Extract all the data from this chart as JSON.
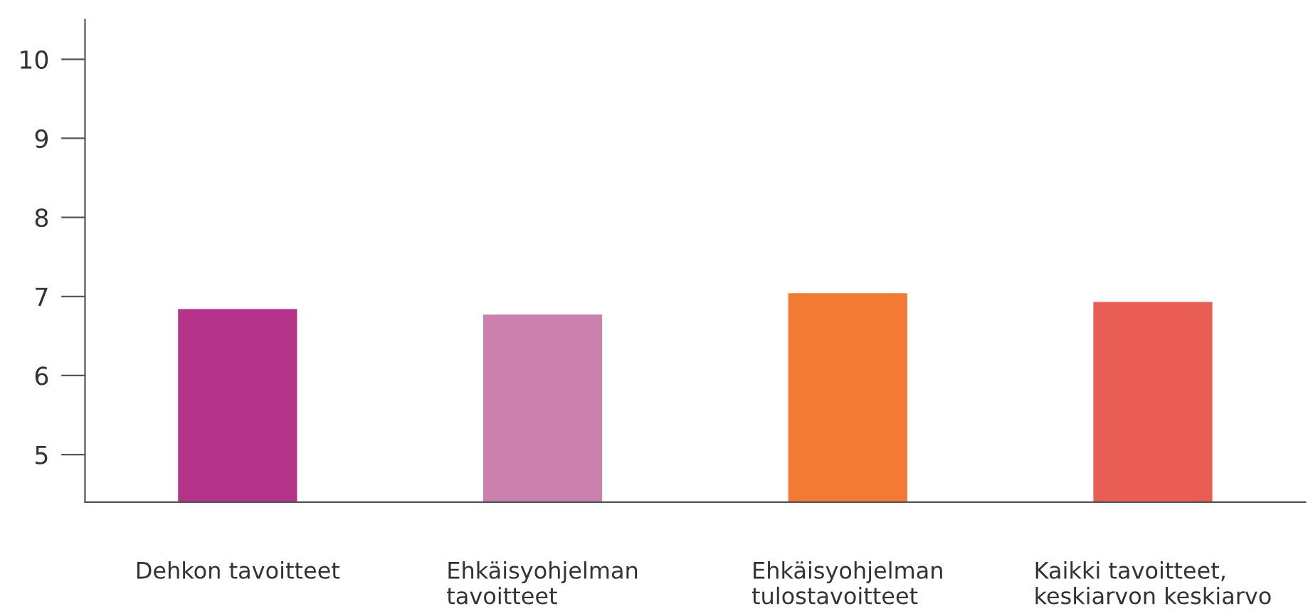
{
  "chart_data": {
    "type": "bar",
    "categories": [
      "Dehkon tavoitteet",
      "Ehkäisyohjelman\ntavoitteet",
      "Ehkäisyohjelman\ntulostavoitteet",
      "Kaikki tavoitteet,\nkeskiarvon keskiarvo"
    ],
    "values": [
      6.84,
      6.77,
      7.04,
      6.93
    ],
    "colors": [
      "#b5338a",
      "#cb80ae",
      "#f37a35",
      "#e95d55"
    ],
    "ylim": [
      4.4,
      10.5
    ],
    "yticks": [
      5,
      6,
      7,
      8,
      9,
      10
    ],
    "grid": false
  }
}
